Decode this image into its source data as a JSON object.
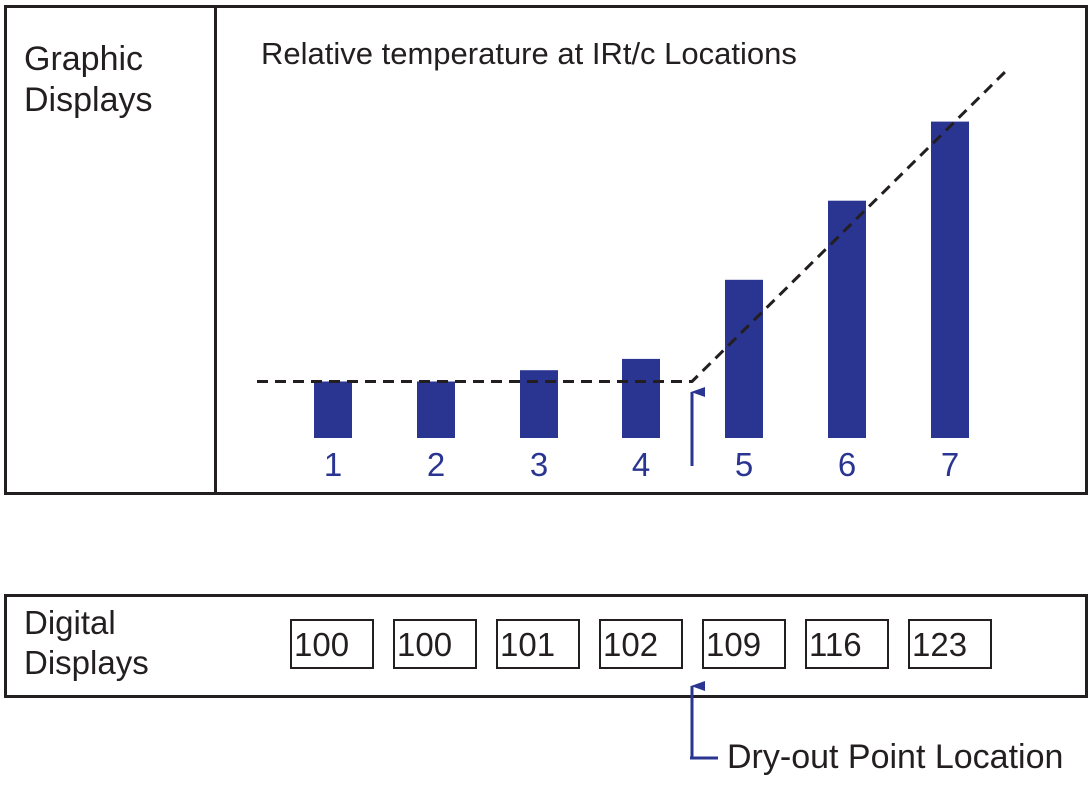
{
  "graphic_panel": {
    "label_line1": "Graphic",
    "label_line2": "Displays"
  },
  "digital_panel": {
    "label_line1": "Digital",
    "label_line2": "Displays",
    "readouts": [
      "100",
      "100",
      "101",
      "102",
      "109",
      "116",
      "123"
    ]
  },
  "callout": {
    "label": "Dry-out Point Location"
  },
  "colors": {
    "bar": "#2a3591",
    "line": "#231f20",
    "arrow": "#2a3591",
    "tick_label": "#2a3591"
  },
  "chart_data": {
    "type": "bar",
    "title": "Relative temperature at IRt/c Locations",
    "categories": [
      "1",
      "2",
      "3",
      "4",
      "5",
      "6",
      "7"
    ],
    "values": [
      100,
      100,
      101,
      102,
      109,
      116,
      123
    ],
    "reference_line": {
      "style": "dashed",
      "shape": "flat then rising after location 4"
    },
    "annotation": "dry-out point between 4 and 5"
  }
}
